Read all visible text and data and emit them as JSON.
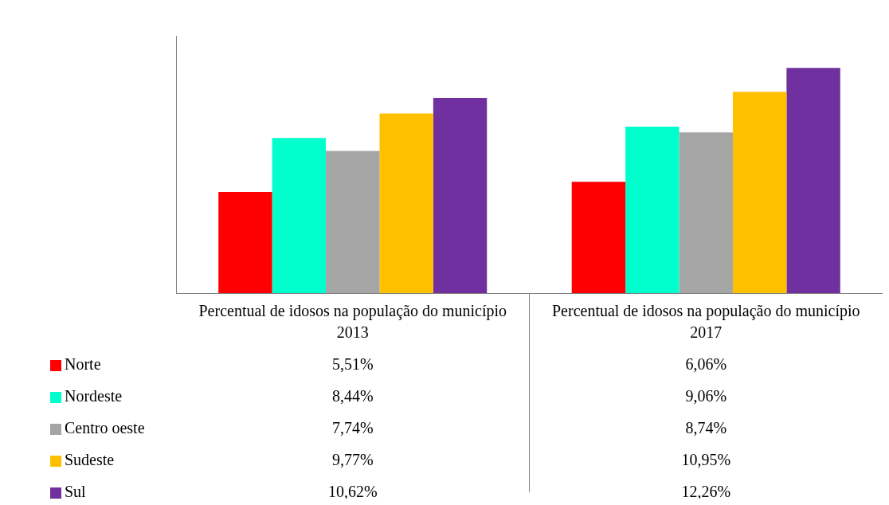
{
  "chart_data": {
    "type": "bar",
    "categories": [
      "Percentual de idosos na população do município 2013",
      "Percentual de idosos na população do município 2017"
    ],
    "series": [
      {
        "name": "Norte",
        "color": "#ff0000",
        "values": [
          5.51,
          6.06
        ],
        "value_labels": [
          "5,51%",
          "6,06%"
        ]
      },
      {
        "name": "Nordeste",
        "color": "#00ffcc",
        "values": [
          8.44,
          9.06
        ],
        "value_labels": [
          "8,44%",
          "9,06%"
        ]
      },
      {
        "name": "Centro oeste",
        "color": "#a5a5a5",
        "values": [
          7.74,
          8.74
        ],
        "value_labels": [
          "7,74%",
          "8,74%"
        ]
      },
      {
        "name": "Sudeste",
        "color": "#ffc000",
        "values": [
          9.77,
          10.95
        ],
        "value_labels": [
          "9,77%",
          "10,95%"
        ]
      },
      {
        "name": "Sul",
        "color": "#7030a0",
        "values": [
          10.62,
          12.26
        ],
        "value_labels": [
          "10,62%",
          "12,26%"
        ]
      }
    ],
    "ylim": [
      0,
      14
    ],
    "tick_labels": "x",
    "grid": false,
    "legend": "bottom"
  }
}
